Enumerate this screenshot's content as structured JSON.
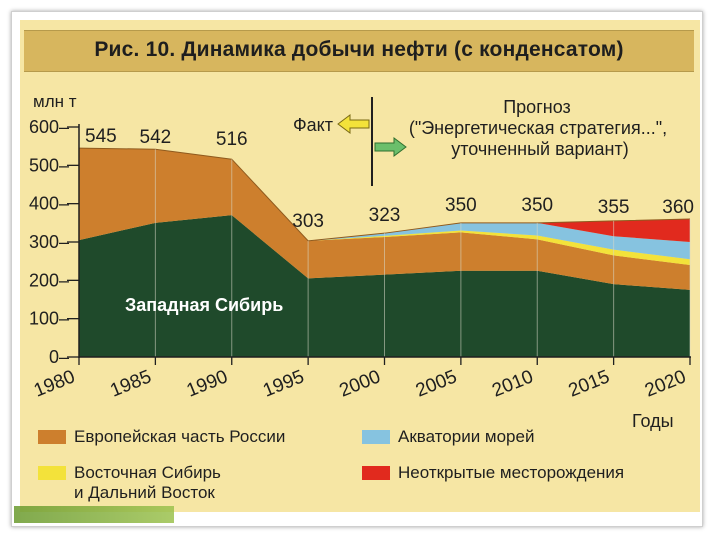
{
  "title": "Рис. 10. Динамика добычи нефти (с конденсатом)",
  "chart_data": {
    "type": "area",
    "stacked": true,
    "ylabel": "млн т",
    "xlabel": "Годы",
    "ylim": [
      0,
      600
    ],
    "yticks": [
      "0",
      "100",
      "200",
      "300",
      "400",
      "500",
      "600"
    ],
    "x": [
      1980,
      1985,
      1990,
      1995,
      2000,
      2005,
      2010,
      2015,
      2020
    ],
    "xtick_labels": [
      "1980",
      "1985",
      "1990",
      "1995",
      "2000",
      "2005",
      "2010",
      "2015",
      "2020"
    ],
    "series": [
      {
        "key": "ws",
        "values": [
          305,
          350,
          370,
          205,
          215,
          225,
          225,
          190,
          175
        ]
      },
      {
        "key": "eu",
        "values": [
          240,
          192,
          146,
          98,
          98,
          100,
          82,
          75,
          65
        ]
      },
      {
        "key": "es",
        "values": [
          0,
          0,
          0,
          0,
          3,
          5,
          10,
          15,
          15
        ]
      },
      {
        "key": "sea",
        "values": [
          0,
          0,
          0,
          0,
          7,
          20,
          33,
          35,
          45
        ]
      },
      {
        "key": "und",
        "values": [
          0,
          0,
          0,
          0,
          0,
          0,
          0,
          40,
          60
        ]
      }
    ],
    "colors": {
      "ws": "#1f4a2b",
      "eu": "#cd7f2d",
      "es": "#f3e23a",
      "sea": "#86c3e0",
      "und": "#e12a1e"
    },
    "series_labels": {
      "ws": "Западная Сибирь"
    },
    "totals": [
      545,
      542,
      516,
      303,
      323,
      350,
      350,
      355,
      360
    ],
    "total_labels": [
      "545",
      "542",
      "516",
      "303",
      "323",
      "350",
      "350",
      "355",
      "360"
    ],
    "annotations": {
      "fact": "Факт",
      "forecast_line1": "Прогноз",
      "forecast_line2": "(\"Энергетическая стратегия...\",",
      "forecast_line3": "уточненный вариант)"
    },
    "legend": {
      "eu": "Европейская часть России",
      "sea": "Акватории морей",
      "es_line1": "Восточная Сибирь",
      "es_line2": "и Дальний Восток",
      "und": "Неоткрытые месторождения"
    },
    "legend_position": "bottom",
    "grid": false
  }
}
